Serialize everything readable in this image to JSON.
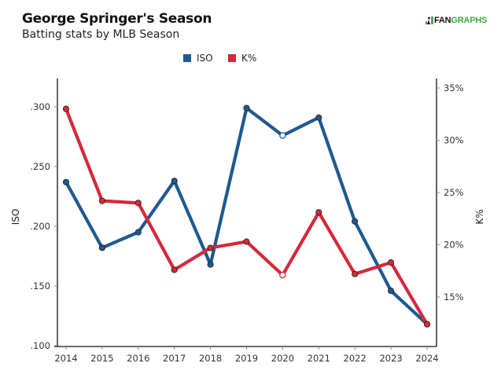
{
  "header": {
    "title": "George Springer's Season",
    "subtitle": "Batting stats by MLB Season",
    "logo": {
      "part1": "FAN",
      "part2": "GRAPHS",
      "icon": "fangraphs-batter-icon"
    }
  },
  "colors": {
    "iso": "#1f5a8f",
    "k_pct": "#d6293b",
    "axis": "#111111",
    "logo_green": "#3dab3d"
  },
  "chart_data": {
    "type": "line",
    "title": "George Springer's Season",
    "subtitle": "Batting stats by MLB Season",
    "xlabel": "",
    "x": [
      2014,
      2015,
      2016,
      2017,
      2018,
      2019,
      2020,
      2021,
      2022,
      2023,
      2024
    ],
    "x_tick_labels": [
      "2014",
      "2015",
      "2016",
      "2017",
      "2018",
      "2019",
      "2020",
      "2021",
      "2022",
      "2023",
      "2024"
    ],
    "legend": {
      "position": "top-center",
      "entries": [
        "ISO",
        "K%"
      ]
    },
    "grid": false,
    "series": [
      {
        "name": "ISO",
        "axis": "left",
        "color": "#1f5a8f",
        "values": [
          0.237,
          0.182,
          0.195,
          0.238,
          0.168,
          0.299,
          0.276,
          0.291,
          0.204,
          0.146,
          0.118
        ],
        "hollow_points": [
          2020
        ]
      },
      {
        "name": "K%",
        "axis": "right",
        "color": "#d6293b",
        "values": [
          33.0,
          24.2,
          24.0,
          17.6,
          19.7,
          20.3,
          17.1,
          23.1,
          17.2,
          18.3,
          12.4
        ],
        "hollow_points": [
          2020
        ]
      }
    ],
    "y_left": {
      "label": "ISO",
      "ylim": [
        0.1,
        0.32
      ],
      "ticks": [
        0.1,
        0.15,
        0.2,
        0.25,
        0.3
      ],
      "tick_labels": [
        ".100",
        ".150",
        ".200",
        ".250",
        ".300"
      ]
    },
    "y_right": {
      "label": "K%",
      "ylim": [
        11.5,
        35
      ],
      "ticks": [
        15,
        20,
        25,
        30,
        35
      ],
      "tick_labels": [
        "15%",
        "20%",
        "25%",
        "30%",
        "35%"
      ]
    }
  }
}
